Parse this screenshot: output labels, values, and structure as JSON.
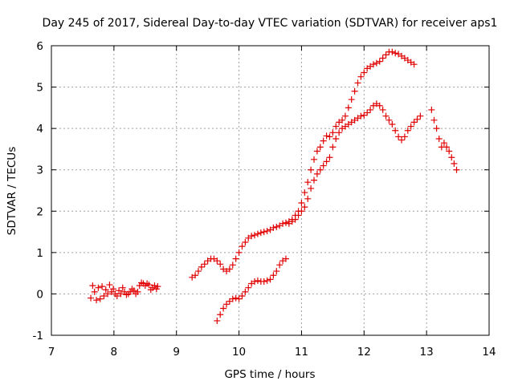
{
  "chart_data": {
    "type": "scatter",
    "title": "Day 245 of 2017, Sidereal Day-to-day VTEC variation (SDTVAR) for receiver aps1",
    "xlabel": "GPS time / hours",
    "ylabel": "SDTVAR / TECUs",
    "xlim": [
      7,
      14
    ],
    "ylim": [
      -1,
      6
    ],
    "xticks": [
      7,
      8,
      9,
      10,
      11,
      12,
      13,
      14
    ],
    "yticks": [
      -1,
      0,
      1,
      2,
      3,
      4,
      5,
      6
    ],
    "xtick_labels": [
      "7",
      "8",
      "9",
      "10",
      "11",
      "12",
      "13",
      "14"
    ],
    "ytick_labels": [
      "-1",
      "0",
      "1",
      "2",
      "3",
      "4",
      "5",
      "6"
    ],
    "grid": true,
    "marker": "plus",
    "color": "#e00000",
    "series": [
      {
        "name": "segment-1",
        "x": [
          7.63,
          7.66,
          7.69,
          7.72,
          7.75,
          7.78,
          7.81,
          7.84,
          7.87,
          7.9,
          7.93,
          7.96,
          7.99,
          8.02,
          8.05,
          8.08,
          8.11,
          8.14,
          8.17,
          8.2,
          8.23,
          8.26,
          8.29,
          8.32,
          8.35,
          8.38,
          8.41,
          8.44,
          8.47,
          8.5,
          8.53,
          8.56,
          8.59,
          8.62,
          8.65,
          8.68,
          8.7
        ],
        "y": [
          -0.1,
          0.2,
          0.05,
          -0.15,
          0.15,
          -0.12,
          0.18,
          -0.05,
          0.1,
          0.0,
          0.22,
          0.05,
          0.12,
          0.0,
          -0.05,
          0.08,
          0.0,
          0.15,
          0.05,
          -0.02,
          0.0,
          0.05,
          0.12,
          0.08,
          0.0,
          0.05,
          0.2,
          0.27,
          0.25,
          0.2,
          0.25,
          0.22,
          0.1,
          0.15,
          0.2,
          0.12,
          0.18
        ]
      },
      {
        "name": "segment-2-upper",
        "x": [
          9.25,
          9.3,
          9.35,
          9.4,
          9.45,
          9.5,
          9.55,
          9.6,
          9.65,
          9.7,
          9.75,
          9.8,
          9.85,
          9.9,
          9.95,
          10.0,
          10.05,
          10.1,
          10.15,
          10.2,
          10.25,
          10.3,
          10.35,
          10.4,
          10.45,
          10.5,
          10.55,
          10.6,
          10.65,
          10.7,
          10.75,
          10.8,
          10.85,
          10.9,
          10.95,
          11.0,
          11.05,
          11.1,
          11.15,
          11.2,
          11.25,
          11.3,
          11.35,
          11.4,
          11.45,
          11.5,
          11.55,
          11.6,
          11.65,
          11.7,
          11.75,
          11.8,
          11.85,
          11.9,
          11.95,
          12.0,
          12.05,
          12.1,
          12.15,
          12.2,
          12.25,
          12.3,
          12.35,
          12.4,
          12.45,
          12.5,
          12.55,
          12.6,
          12.65,
          12.7,
          12.75,
          12.8
        ],
        "y": [
          0.4,
          0.45,
          0.55,
          0.65,
          0.72,
          0.8,
          0.85,
          0.85,
          0.8,
          0.72,
          0.6,
          0.55,
          0.6,
          0.7,
          0.85,
          1.0,
          1.15,
          1.25,
          1.35,
          1.4,
          1.42,
          1.45,
          1.48,
          1.5,
          1.52,
          1.55,
          1.6,
          1.62,
          1.65,
          1.7,
          1.72,
          1.75,
          1.8,
          1.9,
          2.0,
          2.2,
          2.45,
          2.7,
          3.0,
          3.25,
          3.45,
          3.55,
          3.7,
          3.82,
          3.8,
          3.9,
          4.05,
          4.15,
          4.2,
          4.3,
          4.5,
          4.7,
          4.9,
          5.1,
          5.25,
          5.35,
          5.45,
          5.5,
          5.55,
          5.58,
          5.62,
          5.7,
          5.78,
          5.85,
          5.85,
          5.82,
          5.8,
          5.75,
          5.7,
          5.65,
          5.6,
          5.55
        ]
      },
      {
        "name": "segment-2-lower",
        "x": [
          9.65,
          9.7,
          9.75,
          9.8,
          9.85,
          9.9,
          9.95,
          10.0,
          10.05,
          10.1,
          10.15,
          10.2,
          10.25,
          10.3,
          10.35,
          10.4,
          10.45,
          10.5,
          10.55,
          10.6,
          10.65,
          10.7,
          10.75,
          10.8,
          10.85,
          10.9,
          10.95,
          11.0,
          11.05,
          11.1,
          11.15,
          11.2,
          11.25,
          11.3,
          11.35,
          11.4,
          11.45,
          11.5,
          11.55,
          11.6,
          11.65,
          11.7,
          11.75,
          11.8,
          11.85,
          11.9,
          11.95,
          12.0,
          12.05,
          12.1,
          12.15,
          12.2,
          12.25,
          12.3,
          12.35,
          12.4,
          12.45,
          12.5,
          12.55,
          12.6,
          12.65,
          12.7,
          12.75,
          12.8,
          12.85,
          12.9
        ],
        "y": [
          -0.65,
          -0.5,
          -0.35,
          -0.25,
          -0.18,
          -0.12,
          -0.1,
          -0.12,
          -0.05,
          0.05,
          0.15,
          0.25,
          0.3,
          0.32,
          0.3,
          0.3,
          0.32,
          0.35,
          0.45,
          0.55,
          0.7,
          0.8,
          0.85,
          1.7,
          1.75,
          1.8,
          1.9,
          2.0,
          2.1,
          2.3,
          2.55,
          2.75,
          2.9,
          3.0,
          3.1,
          3.2,
          3.3,
          3.55,
          3.75,
          3.9,
          4.0,
          4.05,
          4.1,
          4.15,
          4.2,
          4.25,
          4.3,
          4.32,
          4.38,
          4.45,
          4.55,
          4.6,
          4.55,
          4.45,
          4.3,
          4.2,
          4.1,
          3.95,
          3.8,
          3.72,
          3.8,
          3.95,
          4.05,
          4.15,
          4.22,
          4.3
        ]
      },
      {
        "name": "segment-3",
        "x": [
          13.08,
          13.12,
          13.16,
          13.2,
          13.24,
          13.28,
          13.32,
          13.36,
          13.4,
          13.44,
          13.48
        ],
        "y": [
          4.45,
          4.2,
          4.0,
          3.75,
          3.55,
          3.65,
          3.55,
          3.45,
          3.3,
          3.15,
          3.0
        ]
      }
    ]
  }
}
